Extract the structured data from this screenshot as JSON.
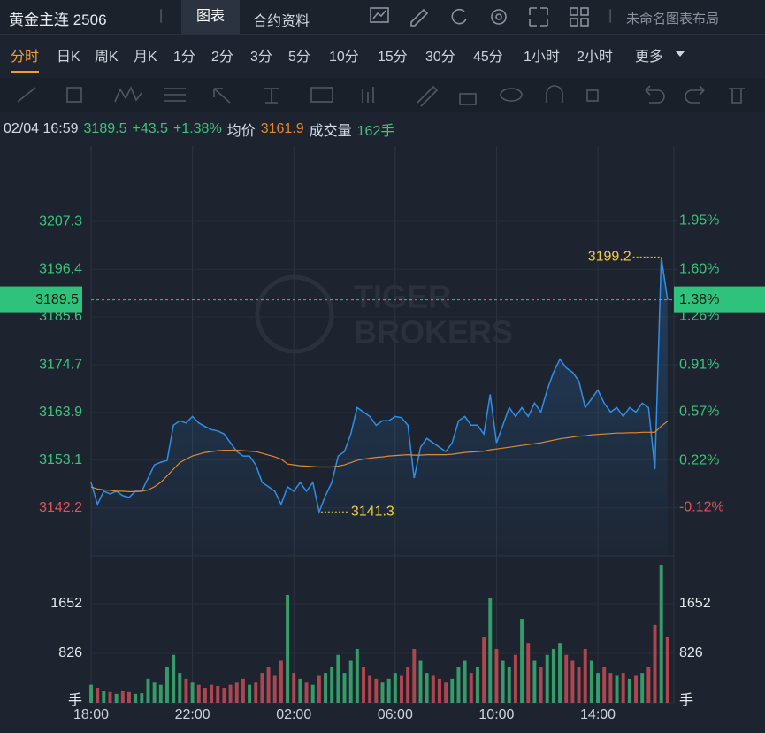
{
  "header": {
    "title": "黄金主连 2506",
    "tabs": [
      "图表",
      "合约资料"
    ],
    "layout": "未命名图表布局"
  },
  "periods": [
    "分时",
    "日K",
    "周K",
    "月K",
    "1分",
    "2分",
    "3分",
    "5分",
    "10分",
    "15分",
    "30分",
    "45分",
    "1小时",
    "2小时",
    "更多"
  ],
  "quote": {
    "time": "02/04 16:59",
    "price": "3189.5",
    "change": "+43.5",
    "pct": "+1.38%",
    "avg_label": "均价",
    "avg": "3161.9",
    "vol_label": "成交量",
    "vol": "162手"
  },
  "watermark": [
    "TIGER",
    "BROKERS"
  ],
  "chart_data": [
    {
      "type": "line",
      "xlim": [
        0,
        92
      ],
      "xticks": [
        {
          "value": 0,
          "label": "18:00"
        },
        {
          "value": 16,
          "label": "22:00"
        },
        {
          "value": 32,
          "label": "02:00"
        },
        {
          "value": 48,
          "label": "06:00"
        },
        {
          "value": 64,
          "label": "10:00"
        },
        {
          "value": 80,
          "label": "14:00"
        }
      ],
      "ylim": [
        3131.3,
        3224.4
      ],
      "yticks": [
        3142.2,
        3153.1,
        3163.9,
        3174.7,
        3185.6,
        3196.4,
        3207.3
      ],
      "y2lim": [
        -0.47,
        2.49
      ],
      "y2ticks": [
        {
          "value": -0.12,
          "label": "-0.12%"
        },
        {
          "value": 0.22,
          "label": "0.22%"
        },
        {
          "value": 0.57,
          "label": "0.57%"
        },
        {
          "value": 0.91,
          "label": "0.91%"
        },
        {
          "value": 1.26,
          "label": "1.26%"
        },
        {
          "value": 1.6,
          "label": "1.60%"
        },
        {
          "value": 1.95,
          "label": "1.95%"
        }
      ],
      "up_color": "#3cc47c",
      "down_color": "#e0525a",
      "price_line": 3189.5,
      "price_line_pct": {
        "value": 1.38,
        "label": "1.38%"
      },
      "annotations": {
        "high": "3199.2",
        "low": "3141.3"
      },
      "series": [
        {
          "color": "#2f8fe8",
          "values": [
            3148.0,
            3143.0,
            3146.0,
            3145.4,
            3146.0,
            3145.0,
            3144.6,
            3146.0,
            3146.0,
            3149.0,
            3152.0,
            3152.6,
            3153.0,
            3161.0,
            3162.0,
            3161.5,
            3163.0,
            3161.5,
            3160.7,
            3160.0,
            3159.7,
            3159.0,
            3157.0,
            3155.0,
            3154.0,
            3154.0,
            3152.0,
            3148.0,
            3147.0,
            3146.0,
            3143.0,
            3147.0,
            3146.0,
            3148.0,
            3146.0,
            3148.0,
            3141.3,
            3145.0,
            3148.0,
            3154.0,
            3155.0,
            3159.0,
            3165.0,
            3164.0,
            3163.0,
            3161.0,
            3162.0,
            3162.0,
            3163.0,
            3162.7,
            3161.0,
            3149.0,
            3156.0,
            3158.0,
            3157.0,
            3156.0,
            3155.0,
            3157.0,
            3162.0,
            3163.0,
            3161.0,
            3161.0,
            3159.0,
            3168.0,
            3157.0,
            3161.0,
            3165.0,
            3163.0,
            3165.0,
            3163.0,
            3166.0,
            3164.0,
            3169.0,
            3173.0,
            3176.0,
            3174.0,
            3173.0,
            3171.0,
            3165.0,
            3167.0,
            3169.0,
            3166.0,
            3164.0,
            3165.0,
            3163.0,
            3165.0,
            3164.0,
            3166.0,
            3165.0,
            3151.0,
            3199.2,
            3189.5
          ]
        },
        {
          "color": "#e0892f",
          "values": [
            3147,
            3146.5,
            3146.3,
            3146.2,
            3146,
            3146,
            3145.9,
            3145.9,
            3146,
            3146.3,
            3147,
            3148,
            3149.5,
            3151,
            3152.5,
            3153.3,
            3154,
            3154.4,
            3154.8,
            3155,
            3155.2,
            3155.3,
            3155.3,
            3155.3,
            3155.2,
            3155.1,
            3155,
            3154.6,
            3154.2,
            3153.8,
            3153.3,
            3152.2,
            3152,
            3151.8,
            3151.7,
            3151.6,
            3151.5,
            3151.5,
            3151.5,
            3151.7,
            3152,
            3152.5,
            3153,
            3153.3,
            3153.5,
            3153.7,
            3153.8,
            3154,
            3154.1,
            3154.2,
            3154.3,
            3154.2,
            3154.2,
            3154.3,
            3154.3,
            3154.3,
            3154.3,
            3154.4,
            3154.6,
            3154.8,
            3154.9,
            3155,
            3155.1,
            3155.4,
            3155.6,
            3155.8,
            3156,
            3156.2,
            3156.4,
            3156.6,
            3156.8,
            3157,
            3157.3,
            3157.6,
            3157.9,
            3158.1,
            3158.3,
            3158.5,
            3158.6,
            3158.8,
            3158.9,
            3159,
            3159.1,
            3159.2,
            3159.2,
            3159.3,
            3159.3,
            3159.4,
            3159.4,
            3159.4,
            3160.8,
            3161.9
          ]
        }
      ]
    },
    {
      "type": "bar",
      "xlim": [
        0,
        92
      ],
      "ylim": [
        0,
        2448
      ],
      "yticks": [
        {
          "value": 0,
          "label": "手"
        },
        826,
        1652
      ],
      "values": [
        300,
        250,
        200,
        180,
        150,
        200,
        180,
        150,
        160,
        400,
        350,
        300,
        600,
        800,
        500,
        400,
        350,
        300,
        250,
        300,
        280,
        250,
        300,
        350,
        400,
        300,
        350,
        500,
        600,
        450,
        700,
        1800,
        500,
        400,
        350,
        300,
        450,
        500,
        600,
        800,
        500,
        700,
        900,
        600,
        450,
        400,
        350,
        400,
        500,
        450,
        600,
        900,
        700,
        500,
        450,
        400,
        350,
        400,
        600,
        700,
        500,
        600,
        1100,
        1750,
        900,
        700,
        600,
        800,
        1400,
        1000,
        700,
        600,
        800,
        900,
        1000,
        800,
        700,
        600,
        900,
        700,
        500,
        600,
        500,
        450,
        500,
        400,
        450,
        500,
        600,
        1300,
        2300,
        1100
      ]
    }
  ]
}
